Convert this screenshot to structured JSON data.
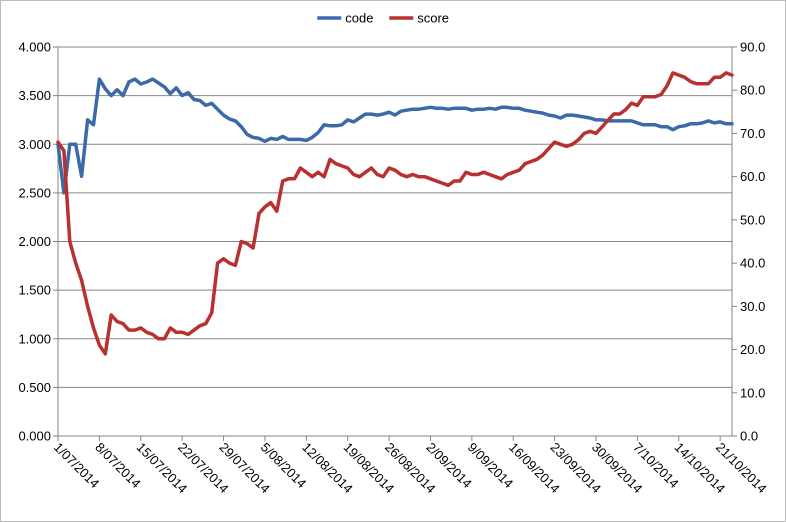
{
  "chart_data": {
    "type": "line",
    "title": "",
    "xlabel": "",
    "ylabel": "",
    "y2label": "",
    "legend_position": "top-center",
    "grid": true,
    "x_tick_labels": [
      "1/07/2014",
      "8/07/2014",
      "15/07/2014",
      "22/07/2014",
      "29/07/2014",
      "5/08/2014",
      "12/08/2014",
      "19/08/2014",
      "26/08/2014",
      "2/09/2014",
      "9/09/2014",
      "16/09/2014",
      "23/09/2014",
      "30/09/2014",
      "7/10/2014",
      "14/10/2014",
      "21/10/2014"
    ],
    "y_left": {
      "min": 0,
      "max": 4,
      "ticks": [
        "0.000",
        "0.500",
        "1.000",
        "1.500",
        "2.000",
        "2.500",
        "3.000",
        "3.500",
        "4.000"
      ]
    },
    "y_right": {
      "min": 0,
      "max": 90,
      "ticks": [
        "0.0",
        "10.0",
        "20.0",
        "30.0",
        "40.0",
        "50.0",
        "60.0",
        "70.0",
        "80.0",
        "90.0"
      ]
    },
    "series": [
      {
        "name": "code",
        "axis": "left",
        "color": "#3C6AA8",
        "points": [
          [
            "1/07/2014",
            3.0
          ],
          [
            "2/07/2014",
            2.5
          ],
          [
            "3/07/2014",
            3.0
          ],
          [
            "4/07/2014",
            3.0
          ],
          [
            "5/07/2014",
            2.67
          ],
          [
            "6/07/2014",
            3.25
          ],
          [
            "7/07/2014",
            3.2
          ],
          [
            "8/07/2014",
            3.67
          ],
          [
            "9/07/2014",
            3.57
          ],
          [
            "10/07/2014",
            3.5
          ],
          [
            "11/07/2014",
            3.56
          ],
          [
            "12/07/2014",
            3.5
          ],
          [
            "13/07/2014",
            3.64
          ],
          [
            "14/07/2014",
            3.67
          ],
          [
            "15/07/2014",
            3.62
          ],
          [
            "16/07/2014",
            3.64
          ],
          [
            "17/07/2014",
            3.67
          ],
          [
            "18/07/2014",
            3.63
          ],
          [
            "19/07/2014",
            3.59
          ],
          [
            "20/07/2014",
            3.52
          ],
          [
            "21/07/2014",
            3.58
          ],
          [
            "22/07/2014",
            3.5
          ],
          [
            "23/07/2014",
            3.53
          ],
          [
            "24/07/2014",
            3.46
          ],
          [
            "25/07/2014",
            3.45
          ],
          [
            "26/07/2014",
            3.4
          ],
          [
            "27/07/2014",
            3.42
          ],
          [
            "28/07/2014",
            3.36
          ],
          [
            "29/07/2014",
            3.3
          ],
          [
            "30/07/2014",
            3.26
          ],
          [
            "31/07/2014",
            3.24
          ],
          [
            "1/08/2014",
            3.18
          ],
          [
            "2/08/2014",
            3.1
          ],
          [
            "3/08/2014",
            3.07
          ],
          [
            "4/08/2014",
            3.06
          ],
          [
            "5/08/2014",
            3.03
          ],
          [
            "6/08/2014",
            3.06
          ],
          [
            "7/08/2014",
            3.05
          ],
          [
            "8/08/2014",
            3.08
          ],
          [
            "9/08/2014",
            3.05
          ],
          [
            "10/08/2014",
            3.05
          ],
          [
            "11/08/2014",
            3.05
          ],
          [
            "12/08/2014",
            3.04
          ],
          [
            "13/08/2014",
            3.07
          ],
          [
            "14/08/2014",
            3.12
          ],
          [
            "15/08/2014",
            3.2
          ],
          [
            "16/08/2014",
            3.19
          ],
          [
            "17/08/2014",
            3.19
          ],
          [
            "18/08/2014",
            3.2
          ],
          [
            "19/08/2014",
            3.25
          ],
          [
            "20/08/2014",
            3.23
          ],
          [
            "21/08/2014",
            3.27
          ],
          [
            "22/08/2014",
            3.31
          ],
          [
            "23/08/2014",
            3.31
          ],
          [
            "24/08/2014",
            3.3
          ],
          [
            "25/08/2014",
            3.31
          ],
          [
            "26/08/2014",
            3.33
          ],
          [
            "27/08/2014",
            3.3
          ],
          [
            "28/08/2014",
            3.34
          ],
          [
            "29/08/2014",
            3.35
          ],
          [
            "30/08/2014",
            3.36
          ],
          [
            "31/08/2014",
            3.36
          ],
          [
            "1/09/2014",
            3.37
          ],
          [
            "2/09/2014",
            3.38
          ],
          [
            "3/09/2014",
            3.37
          ],
          [
            "4/09/2014",
            3.37
          ],
          [
            "5/09/2014",
            3.36
          ],
          [
            "6/09/2014",
            3.37
          ],
          [
            "7/09/2014",
            3.37
          ],
          [
            "8/09/2014",
            3.37
          ],
          [
            "9/09/2014",
            3.35
          ],
          [
            "10/09/2014",
            3.36
          ],
          [
            "11/09/2014",
            3.36
          ],
          [
            "12/09/2014",
            3.37
          ],
          [
            "13/09/2014",
            3.36
          ],
          [
            "14/09/2014",
            3.38
          ],
          [
            "15/09/2014",
            3.38
          ],
          [
            "16/09/2014",
            3.37
          ],
          [
            "17/09/2014",
            3.37
          ],
          [
            "18/09/2014",
            3.35
          ],
          [
            "19/09/2014",
            3.34
          ],
          [
            "20/09/2014",
            3.33
          ],
          [
            "21/09/2014",
            3.32
          ],
          [
            "22/09/2014",
            3.3
          ],
          [
            "23/09/2014",
            3.29
          ],
          [
            "24/09/2014",
            3.27
          ],
          [
            "25/09/2014",
            3.3
          ],
          [
            "26/09/2014",
            3.3
          ],
          [
            "27/09/2014",
            3.29
          ],
          [
            "28/09/2014",
            3.28
          ],
          [
            "29/09/2014",
            3.27
          ],
          [
            "30/09/2014",
            3.25
          ],
          [
            "1/10/2014",
            3.25
          ],
          [
            "2/10/2014",
            3.24
          ],
          [
            "3/10/2014",
            3.24
          ],
          [
            "4/10/2014",
            3.24
          ],
          [
            "5/10/2014",
            3.24
          ],
          [
            "6/10/2014",
            3.24
          ],
          [
            "7/10/2014",
            3.22
          ],
          [
            "8/10/2014",
            3.2
          ],
          [
            "9/10/2014",
            3.2
          ],
          [
            "10/10/2014",
            3.2
          ],
          [
            "11/10/2014",
            3.18
          ],
          [
            "12/10/2014",
            3.18
          ],
          [
            "13/10/2014",
            3.15
          ],
          [
            "14/10/2014",
            3.18
          ],
          [
            "15/10/2014",
            3.19
          ],
          [
            "16/10/2014",
            3.21
          ],
          [
            "17/10/2014",
            3.21
          ],
          [
            "18/10/2014",
            3.22
          ],
          [
            "19/10/2014",
            3.24
          ],
          [
            "20/10/2014",
            3.22
          ],
          [
            "21/10/2014",
            3.23
          ],
          [
            "22/10/2014",
            3.21
          ],
          [
            "23/10/2014",
            3.21
          ]
        ]
      },
      {
        "name": "score",
        "axis": "right",
        "color": "#B8312F",
        "points": [
          [
            "1/07/2014",
            68.0
          ],
          [
            "2/07/2014",
            66.0
          ],
          [
            "3/07/2014",
            45.0
          ],
          [
            "4/07/2014",
            40.0
          ],
          [
            "5/07/2014",
            36.0
          ],
          [
            "6/07/2014",
            30.0
          ],
          [
            "7/07/2014",
            25.0
          ],
          [
            "8/07/2014",
            21.0
          ],
          [
            "9/07/2014",
            19.0
          ],
          [
            "10/07/2014",
            28.0
          ],
          [
            "11/07/2014",
            26.5
          ],
          [
            "12/07/2014",
            26.0
          ],
          [
            "13/07/2014",
            24.5
          ],
          [
            "14/07/2014",
            24.5
          ],
          [
            "15/07/2014",
            25.0
          ],
          [
            "16/07/2014",
            24.0
          ],
          [
            "17/07/2014",
            23.5
          ],
          [
            "18/07/2014",
            22.5
          ],
          [
            "19/07/2014",
            22.5
          ],
          [
            "20/07/2014",
            25.0
          ],
          [
            "21/07/2014",
            24.0
          ],
          [
            "22/07/2014",
            24.0
          ],
          [
            "23/07/2014",
            23.5
          ],
          [
            "24/07/2014",
            24.5
          ],
          [
            "25/07/2014",
            25.5
          ],
          [
            "26/07/2014",
            26.0
          ],
          [
            "27/07/2014",
            28.5
          ],
          [
            "28/07/2014",
            40.0
          ],
          [
            "29/07/2014",
            41.0
          ],
          [
            "30/07/2014",
            40.0
          ],
          [
            "31/07/2014",
            39.5
          ],
          [
            "1/08/2014",
            45.0
          ],
          [
            "2/08/2014",
            44.5
          ],
          [
            "3/08/2014",
            43.5
          ],
          [
            "4/08/2014",
            51.5
          ],
          [
            "5/08/2014",
            53.0
          ],
          [
            "6/08/2014",
            54.0
          ],
          [
            "7/08/2014",
            52.0
          ],
          [
            "8/08/2014",
            59.0
          ],
          [
            "9/08/2014",
            59.5
          ],
          [
            "10/08/2014",
            59.5
          ],
          [
            "11/08/2014",
            62.0
          ],
          [
            "12/08/2014",
            61.0
          ],
          [
            "13/08/2014",
            60.0
          ],
          [
            "14/08/2014",
            61.0
          ],
          [
            "15/08/2014",
            60.0
          ],
          [
            "16/08/2014",
            64.0
          ],
          [
            "17/08/2014",
            63.0
          ],
          [
            "18/08/2014",
            62.5
          ],
          [
            "19/08/2014",
            62.0
          ],
          [
            "20/08/2014",
            60.5
          ],
          [
            "21/08/2014",
            60.0
          ],
          [
            "22/08/2014",
            61.0
          ],
          [
            "23/08/2014",
            62.0
          ],
          [
            "24/08/2014",
            60.5
          ],
          [
            "25/08/2014",
            60.0
          ],
          [
            "26/08/2014",
            62.0
          ],
          [
            "27/08/2014",
            61.5
          ],
          [
            "28/08/2014",
            60.5
          ],
          [
            "29/08/2014",
            60.0
          ],
          [
            "30/08/2014",
            60.5
          ],
          [
            "31/08/2014",
            60.0
          ],
          [
            "1/09/2014",
            60.0
          ],
          [
            "2/09/2014",
            59.5
          ],
          [
            "3/09/2014",
            59.0
          ],
          [
            "4/09/2014",
            58.5
          ],
          [
            "5/09/2014",
            58.0
          ],
          [
            "6/09/2014",
            59.0
          ],
          [
            "7/09/2014",
            59.0
          ],
          [
            "8/09/2014",
            61.0
          ],
          [
            "9/09/2014",
            60.5
          ],
          [
            "10/09/2014",
            60.5
          ],
          [
            "11/09/2014",
            61.0
          ],
          [
            "12/09/2014",
            60.5
          ],
          [
            "13/09/2014",
            60.0
          ],
          [
            "14/09/2014",
            59.5
          ],
          [
            "15/09/2014",
            60.5
          ],
          [
            "16/09/2014",
            61.0
          ],
          [
            "17/09/2014",
            61.5
          ],
          [
            "18/09/2014",
            63.0
          ],
          [
            "19/09/2014",
            63.5
          ],
          [
            "20/09/2014",
            64.0
          ],
          [
            "21/09/2014",
            65.0
          ],
          [
            "22/09/2014",
            66.5
          ],
          [
            "23/09/2014",
            68.0
          ],
          [
            "24/09/2014",
            67.5
          ],
          [
            "25/09/2014",
            67.0
          ],
          [
            "26/09/2014",
            67.5
          ],
          [
            "27/09/2014",
            68.5
          ],
          [
            "28/09/2014",
            70.0
          ],
          [
            "29/09/2014",
            70.5
          ],
          [
            "30/09/2014",
            70.0
          ],
          [
            "1/10/2014",
            71.5
          ],
          [
            "2/10/2014",
            73.0
          ],
          [
            "3/10/2014",
            74.5
          ],
          [
            "4/10/2014",
            74.5
          ],
          [
            "5/10/2014",
            75.5
          ],
          [
            "6/10/2014",
            77.0
          ],
          [
            "7/10/2014",
            76.5
          ],
          [
            "8/10/2014",
            78.5
          ],
          [
            "9/10/2014",
            78.5
          ],
          [
            "10/10/2014",
            78.5
          ],
          [
            "11/10/2014",
            79.0
          ],
          [
            "12/10/2014",
            81.0
          ],
          [
            "13/10/2014",
            84.0
          ],
          [
            "14/10/2014",
            83.5
          ],
          [
            "15/10/2014",
            83.0
          ],
          [
            "16/10/2014",
            82.0
          ],
          [
            "17/10/2014",
            81.5
          ],
          [
            "18/10/2014",
            81.5
          ],
          [
            "19/10/2014",
            81.5
          ],
          [
            "20/10/2014",
            83.0
          ],
          [
            "21/10/2014",
            83.0
          ],
          [
            "22/10/2014",
            84.0
          ],
          [
            "23/10/2014",
            83.5
          ]
        ]
      }
    ]
  }
}
